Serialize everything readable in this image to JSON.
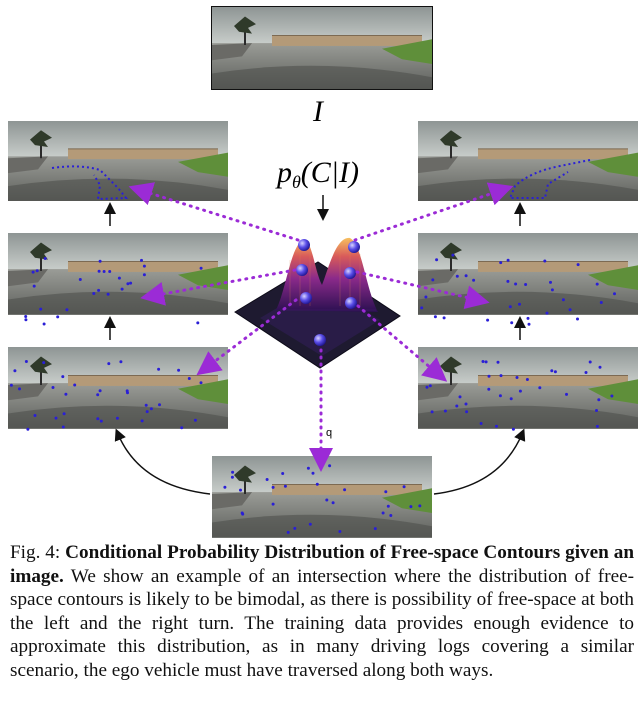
{
  "figure": {
    "top_symbol": "I",
    "distribution_label_p": "p",
    "distribution_label_theta": "θ",
    "distribution_label_args": "(C|I)",
    "sample_label": "q",
    "colors": {
      "sample_dots": "#2a1fd6",
      "dotted_arrows": "#9b2bd6",
      "surface_low": "#1a1440",
      "surface_mid": "#7a2a8f",
      "surface_high": "#f0a040",
      "sky": "#b9c0bf",
      "road": "#8a8c88",
      "fence": "#b49a78",
      "grass": "#5f8f3a"
    },
    "icons": [
      "road-scene-image",
      "probability-surface-plot",
      "dotted-arrow",
      "solid-arrow"
    ]
  },
  "caption": {
    "prefix": "Fig. 4: ",
    "bold": "Conditional Probability Distribution of Free-space Contours given an image.",
    "body": " We show an example of an intersection where the distribution of free-space contours is likely to be bimodal, as there is possibility of free-space at both the left and the right turn. The training data provides enough evidence to approximate this distribution, as in many driving logs covering a similar scenario, the ego vehicle must have traversed along both ways."
  }
}
